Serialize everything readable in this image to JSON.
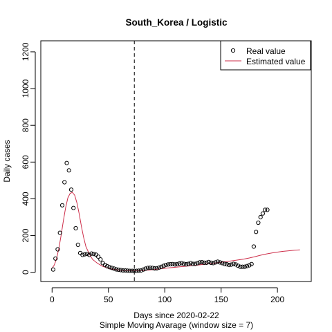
{
  "chart_data": {
    "type": "scatter",
    "title": "South_Korea / Logistic",
    "xlabel": "Days since 2020-02-22",
    "subtitle": "Simple Moving Avarage (window size = 7)",
    "ylabel": "Daily cases",
    "xlim": [
      -10,
      230
    ],
    "ylim": [
      -50,
      1260
    ],
    "x_ticks": [
      0,
      50,
      100,
      150,
      200
    ],
    "x_tick_labels": [
      "0",
      "50",
      "100",
      "150",
      "200"
    ],
    "y_ticks": [
      0,
      200,
      400,
      600,
      800,
      1000,
      1200
    ],
    "y_tick_labels": [
      "0",
      "200",
      "400",
      "600",
      "800",
      "1000",
      "1200"
    ],
    "vline_x": 73,
    "legend": {
      "position": "top-right",
      "entries": [
        "Real value",
        "Estimated value"
      ]
    },
    "colors": {
      "real": "#000000",
      "estimated": "#cd2c48",
      "vline": "#000000"
    },
    "series": [
      {
        "name": "Real value",
        "style": "open-circle",
        "x": [
          1,
          2,
          3,
          4,
          5,
          6,
          7,
          8,
          9,
          10,
          11,
          12,
          13,
          14,
          15,
          16,
          17,
          18,
          19,
          20,
          21,
          22,
          23,
          24,
          25,
          26,
          27,
          28,
          29,
          30,
          31,
          32,
          33,
          34,
          35,
          36,
          37,
          38,
          39,
          40,
          41,
          42,
          43,
          44,
          45,
          46,
          47,
          48,
          49,
          50,
          51,
          52,
          53,
          54,
          55,
          56,
          57,
          58,
          59,
          60,
          61,
          62,
          63,
          64,
          65,
          66,
          67,
          68,
          69,
          70,
          71,
          72,
          73,
          74,
          75,
          76,
          77,
          78,
          79,
          80,
          81,
          82,
          83,
          84,
          85,
          86,
          87,
          88,
          89,
          90,
          91,
          92,
          93,
          94,
          95,
          96,
          97,
          98,
          99,
          100,
          101,
          102,
          103,
          104,
          105,
          106,
          107,
          108,
          109,
          110,
          111,
          112,
          113,
          114,
          115,
          116,
          117,
          118,
          119,
          120,
          121,
          122,
          123,
          124,
          125,
          126,
          127,
          128,
          129,
          130,
          131,
          132,
          133,
          134,
          135,
          136,
          137,
          138,
          139,
          140,
          141,
          142,
          143,
          144,
          145,
          146,
          147,
          148,
          149,
          150,
          151,
          152,
          153,
          154,
          155,
          156,
          157,
          158,
          159,
          160,
          161,
          162,
          163,
          164,
          165,
          166,
          167,
          168,
          169,
          170,
          171,
          172,
          173,
          174,
          175,
          176,
          177,
          178,
          179,
          180,
          181,
          182,
          183,
          184,
          185,
          186,
          187,
          188,
          189,
          190,
          191,
          192
        ],
        "y": [
          15,
          40,
          75,
          100,
          125,
          160,
          215,
          260,
          365,
          415,
          490,
          560,
          595,
          605,
          555,
          515,
          450,
          400,
          350,
          300,
          240,
          190,
          150,
          120,
          105,
          95,
          95,
          100,
          98,
          96,
          100,
          98,
          95,
          98,
          102,
          105,
          100,
          98,
          96,
          92,
          85,
          78,
          70,
          60,
          50,
          45,
          40,
          36,
          33,
          30,
          28,
          26,
          24,
          22,
          20,
          18,
          16,
          15,
          14,
          12,
          12,
          11,
          10,
          10,
          10,
          9,
          9,
          9,
          8,
          8,
          8,
          8,
          8,
          8,
          8,
          8,
          9,
          10,
          10,
          12,
          15,
          18,
          20,
          22,
          24,
          25,
          25,
          25,
          24,
          22,
          21,
          20,
          22,
          24,
          26,
          28,
          30,
          32,
          35,
          38,
          40,
          42,
          43,
          44,
          44,
          45,
          45,
          44,
          43,
          44,
          45,
          46,
          48,
          50,
          50,
          48,
          46,
          45,
          44,
          45,
          46,
          48,
          50,
          48,
          46,
          45,
          46,
          48,
          50,
          52,
          54,
          55,
          55,
          54,
          52,
          50,
          52,
          55,
          56,
          54,
          52,
          50,
          50,
          52,
          54,
          56,
          58,
          56,
          54,
          52,
          50,
          48,
          46,
          45,
          44,
          42,
          40,
          40,
          42,
          44,
          46,
          45,
          43,
          40,
          36,
          32,
          30,
          30,
          30,
          30,
          30,
          32,
          34,
          36,
          38,
          40,
          45,
          80,
          140,
          190,
          220,
          250,
          270,
          290,
          300,
          310,
          320,
          330,
          340,
          345,
          340,
          330
        ],
        "display_step": 2
      },
      {
        "name": "Estimated value",
        "style": "line",
        "x": [
          0,
          2,
          4,
          6,
          8,
          10,
          12,
          14,
          16,
          18,
          20,
          22,
          24,
          26,
          28,
          30,
          33,
          36,
          40,
          45,
          50,
          55,
          60,
          65,
          70,
          75,
          80,
          85,
          90,
          95,
          100,
          110,
          120,
          130,
          140,
          150,
          160,
          170,
          175,
          180,
          185,
          190,
          195,
          200,
          205,
          210,
          215,
          220
        ],
        "y": [
          22,
          40,
          75,
          130,
          200,
          280,
          350,
          405,
          430,
          435,
          420,
          380,
          320,
          250,
          190,
          140,
          100,
          70,
          50,
          32,
          22,
          16,
          12,
          10,
          9,
          9,
          10,
          12,
          15,
          18,
          22,
          28,
          34,
          40,
          47,
          55,
          63,
          72,
          78,
          85,
          93,
          100,
          105,
          110,
          114,
          117,
          120,
          122
        ]
      }
    ]
  }
}
